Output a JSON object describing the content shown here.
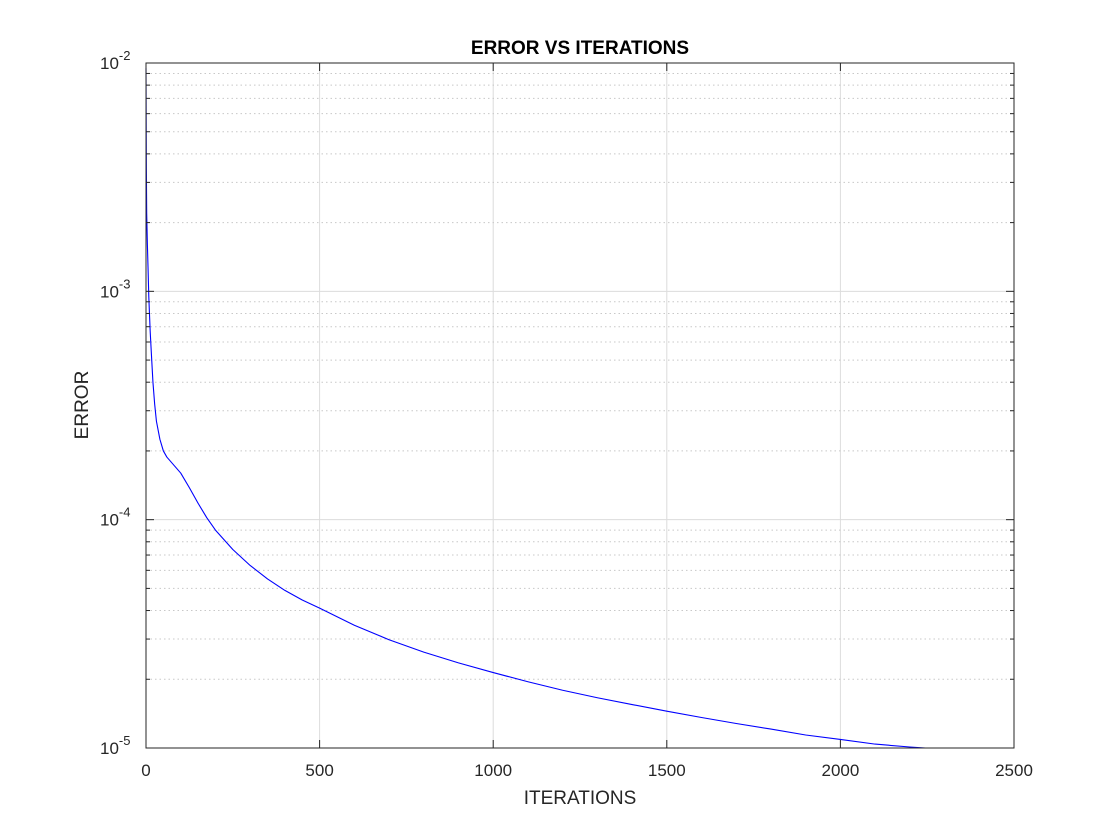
{
  "chart_data": {
    "type": "line",
    "title": "ERROR VS ITERATIONS",
    "xlabel": "ITERATIONS",
    "ylabel": "ERROR",
    "xlim": [
      0,
      2500
    ],
    "ylim": [
      1e-05,
      0.01
    ],
    "yscale": "log",
    "grid": true,
    "minor_grid_y": true,
    "x_ticks": [
      0,
      500,
      1000,
      1500,
      2000,
      2500
    ],
    "x_tick_labels": [
      "0",
      "500",
      "1000",
      "1500",
      "2000",
      "2500"
    ],
    "y_ticks": [
      1e-05,
      0.0001,
      0.001,
      0.01
    ],
    "y_tick_labels": [
      {
        "base": "10",
        "exp": "-5"
      },
      {
        "base": "10",
        "exp": "-4"
      },
      {
        "base": "10",
        "exp": "-3"
      },
      {
        "base": "10",
        "exp": "-2"
      }
    ],
    "series": [
      {
        "color": "#0000ff",
        "x": [
          0,
          1,
          2,
          4,
          6,
          8,
          10,
          12,
          15,
          20,
          25,
          30,
          40,
          50,
          60,
          75,
          100,
          125,
          150,
          175,
          200,
          250,
          300,
          350,
          400,
          450,
          500,
          600,
          700,
          800,
          900,
          1000,
          1100,
          1200,
          1300,
          1400,
          1500,
          1600,
          1700,
          1800,
          1900,
          2000,
          2100,
          2200,
          2245
        ],
        "y": [
          0.0095,
          0.0035,
          0.0022,
          0.0016,
          0.00125,
          0.00095,
          0.0008,
          0.00067,
          0.00055,
          0.0004,
          0.00032,
          0.00027,
          0.000225,
          0.0002,
          0.000188,
          0.000177,
          0.00016,
          0.000138,
          0.000118,
          0.000102,
          9e-05,
          7.4e-05,
          6.3e-05,
          5.5e-05,
          4.9e-05,
          4.45e-05,
          4.1e-05,
          3.45e-05,
          2.98e-05,
          2.63e-05,
          2.36e-05,
          2.14e-05,
          1.95e-05,
          1.79e-05,
          1.66e-05,
          1.55e-05,
          1.45e-05,
          1.36e-05,
          1.28e-05,
          1.21e-05,
          1.14e-05,
          1.09e-05,
          1.04e-05,
          1.01e-05,
          1e-05
        ]
      }
    ]
  }
}
